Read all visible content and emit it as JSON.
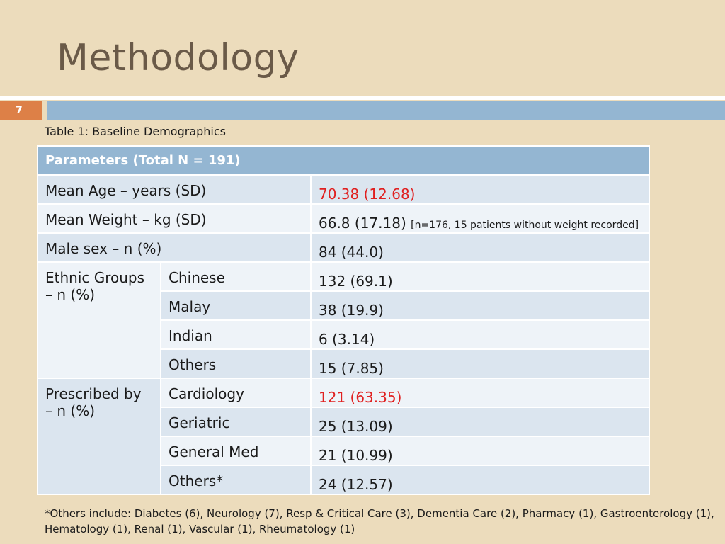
{
  "slide": {
    "title": "Methodology",
    "page_number": "7"
  },
  "caption": "Table 1: Baseline Demographics",
  "table": {
    "header": "Parameters (Total N = 191)",
    "mean_age": {
      "label": "Mean Age – years (SD)",
      "value": "70.38 (12.68)"
    },
    "mean_weight": {
      "label": "Mean Weight – kg (SD)",
      "value": "66.8 (17.18)",
      "note": "[n=176, 15 patients without weight recorded]"
    },
    "male_sex": {
      "label": "Male sex – n (%)",
      "value": "84 (44.0)"
    },
    "ethnic": {
      "label_line1": "Ethnic Groups",
      "label_line2": "– n (%)",
      "rows": [
        {
          "label": "Chinese",
          "value": "132 (69.1)"
        },
        {
          "label": "Malay",
          "value": "38 (19.9)"
        },
        {
          "label": "Indian",
          "value": "6 (3.14)"
        },
        {
          "label": "Others",
          "value": "15 (7.85)"
        }
      ]
    },
    "prescribed": {
      "label_line1": "Prescribed by",
      "label_line2": "– n (%)",
      "rows": [
        {
          "label": "Cardiology",
          "value": "121 (63.35)"
        },
        {
          "label": "Geriatric",
          "value": "25 (13.09)"
        },
        {
          "label": "General Med",
          "value": "21 (10.99)"
        },
        {
          "label": "Others*",
          "value": "24 (12.57)"
        }
      ]
    }
  },
  "footnote": "*Others include: Diabetes (6), Neurology (7), Resp & Critical Care (3), Dementia Care (2), Pharmacy (1), Gastroenterology (1), Hematology (1), Renal (1), Vascular (1), Rheumatology (1)",
  "colors": {
    "background": "#ecdcbc",
    "title": "#6a5a48",
    "accent_orange": "#dd8047",
    "accent_blue": "#94b6d2",
    "highlight_red": "#e02020"
  }
}
